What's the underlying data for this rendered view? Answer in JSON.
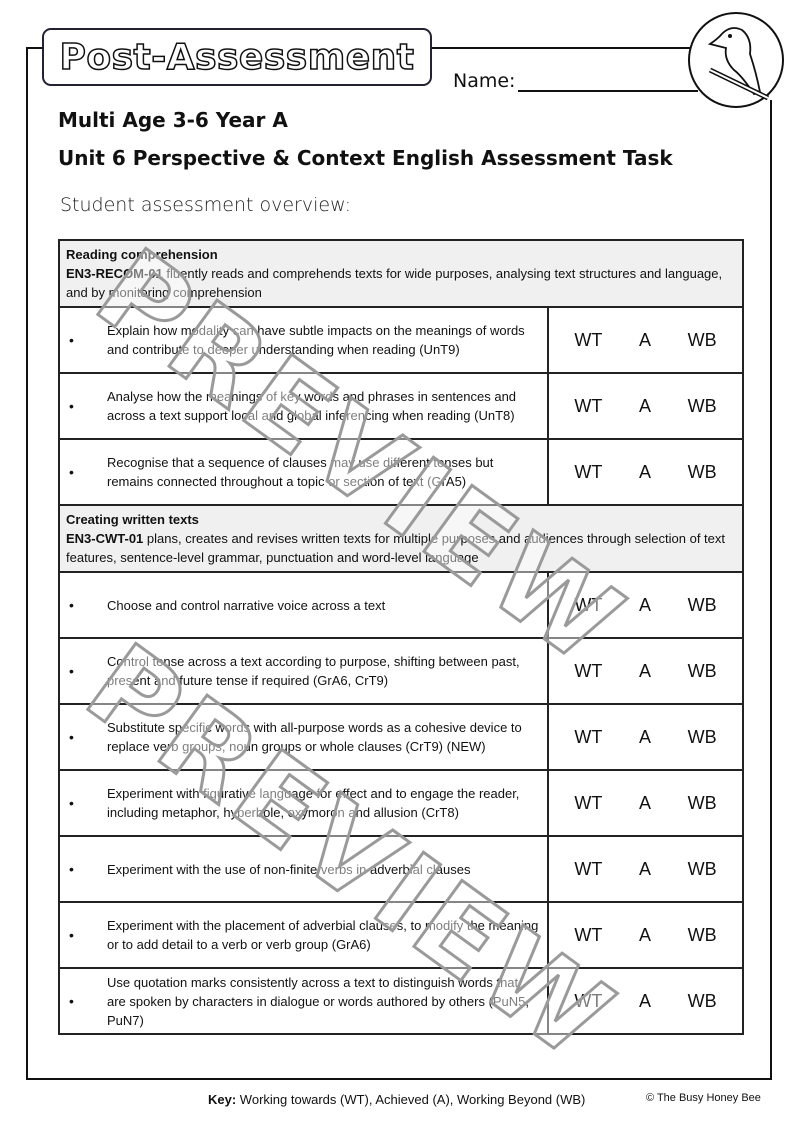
{
  "header": {
    "title": "Post-Assessment",
    "name_label": "Name:",
    "subtitle1": "Multi Age 3-6 Year A",
    "subtitle2": "Unit 6 Perspective & Context English Assessment Task",
    "overview": "Student assessment overview:"
  },
  "sections": [
    {
      "heading": "Reading comprehension",
      "outcome_code": "EN3-RECOM-01",
      "outcome_text": " fluently reads and comprehends texts for wide purposes, analysing text structures and language, and by monitoring comprehension",
      "items": [
        {
          "text": "Explain how modality can have subtle impacts on the meanings of words and contribute to deeper understanding when reading (UnT9)"
        },
        {
          "text": "Analyse how the meanings of key words and phrases in sentences and across a text support local and global inferencing when reading (UnT8)"
        },
        {
          "text": "Recognise that a sequence of clauses may use different tenses but remains connected throughout a topic or section of text (GrA5)"
        }
      ]
    },
    {
      "heading": "Creating written texts",
      "outcome_code": "EN3-CWT-01",
      "outcome_text": " plans, creates and revises written texts for multiple purposes and audiences through selection of text features, sentence-level grammar, punctuation and word-level language",
      "items": [
        {
          "text": "Choose and control narrative voice across a text"
        },
        {
          "text": "Control tense across a text according to purpose, shifting between past, present and future tense if required (GrA6, CrT9)"
        },
        {
          "text": "Substitute specific words with all-purpose words as a cohesive device to replace verb groups, noun groups or whole clauses (CrT9) (NEW)"
        },
        {
          "text": "Experiment with figurative language for effect and to engage the reader, including metaphor, hyperbole, oxymoron and allusion (CrT8)"
        },
        {
          "text": "Experiment with the use of non-finite verbs in adverbial clauses"
        },
        {
          "text": "Experiment with the placement of adverbial clauses, to modify the meaning or to add detail to a verb or verb group (GrA6)"
        },
        {
          "text": "Use quotation marks consistently across a text to distinguish words that are spoken by characters in dialogue or words authored by others (PuN5, PuN7)"
        }
      ]
    }
  ],
  "ratings": {
    "wt": "WT",
    "a": "A",
    "wb": "WB",
    "bullet": "•"
  },
  "footer": {
    "key_label": "Key:",
    "key_text": " Working towards (WT), Achieved (A), Working Beyond (WB)",
    "copyright": "© The Busy Honey Bee"
  },
  "watermark": "PREVIEW"
}
